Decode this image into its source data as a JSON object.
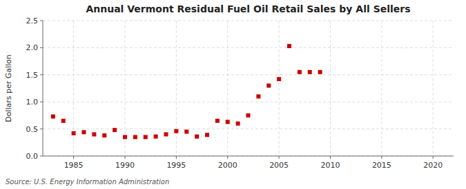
{
  "chart_data": {
    "type": "scatter",
    "title": "Annual Vermont Residual Fuel Oil Retail Sales by All Sellers",
    "ylabel": "Dollars per Gallon",
    "source": "Source: U.S. Energy Information Administration",
    "x": [
      1983,
      1984,
      1985,
      1986,
      1987,
      1988,
      1989,
      1990,
      1991,
      1992,
      1993,
      1994,
      1995,
      1996,
      1997,
      1998,
      1999,
      2000,
      2001,
      2002,
      2003,
      2004,
      2005,
      2006,
      2007,
      2008,
      2009
    ],
    "values": [
      0.73,
      0.65,
      0.42,
      0.44,
      0.4,
      0.38,
      0.48,
      0.35,
      0.35,
      0.35,
      0.36,
      0.4,
      0.46,
      0.45,
      0.36,
      0.39,
      0.65,
      0.63,
      0.6,
      0.75,
      1.1,
      1.3,
      1.42,
      2.03,
      1.55,
      1.55,
      1.55
    ],
    "color": "#cc0000",
    "marker": "square",
    "xlim": [
      1982,
      2022
    ],
    "ylim": [
      0.0,
      2.5
    ],
    "xticks": [
      1985,
      1990,
      1995,
      2000,
      2005,
      2010,
      2015,
      2020
    ],
    "yticks": [
      {
        "value": 0.0,
        "label": "0.0"
      },
      0.5,
      {
        "value": 1.0,
        "label": "1.0"
      },
      1.5,
      {
        "value": 2.0,
        "label": "2.0"
      },
      2.5
    ],
    "grid": true
  }
}
